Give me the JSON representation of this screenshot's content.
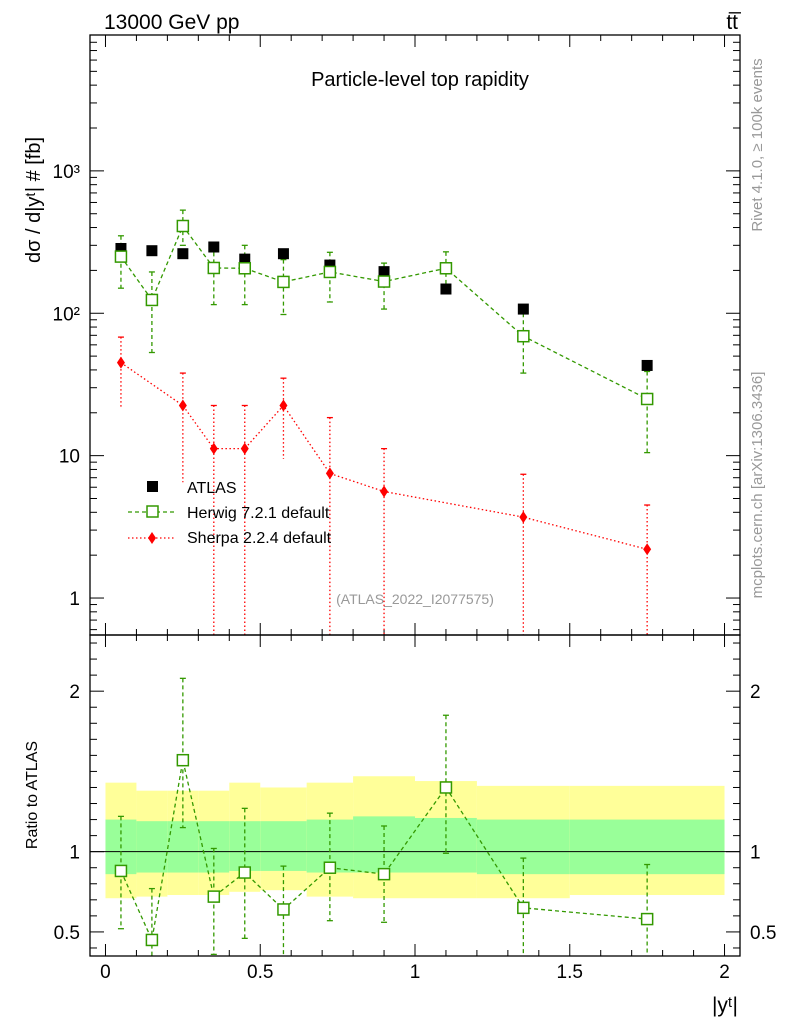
{
  "header": {
    "energy_label": "13000 GeV pp",
    "process_label": "tt̅",
    "rivet_label": "Rivet 4.1.0, ≥ 100k events",
    "source_label": "mcplots.cern.ch [arXiv:1306.3436]",
    "analysis_label": "(ATLAS_2022_I2077575)"
  },
  "chart_data": {
    "type": "scatter",
    "title": "Particle-level top rapidity",
    "xlabel": "|yᵗ|",
    "ylabel": "dσ / d|yᵗ| # [fb]",
    "ratio_ylabel": "Ratio to ATLAS",
    "xlim": [
      -0.05,
      2.05
    ],
    "ylim": [
      0.55,
      9000
    ],
    "ratio_ylim": [
      0.35,
      2.35
    ],
    "yscale": "log",
    "x_ticks": [
      0,
      0.5,
      1,
      1.5,
      2
    ],
    "x_tick_labels": [
      "0",
      "0.5",
      "1",
      "1.5",
      "2"
    ],
    "y_ticks": [
      1,
      10,
      100,
      1000
    ],
    "y_tick_labels": [
      "1",
      "10",
      "10²",
      "10³"
    ],
    "ratio_ticks": [
      0.5,
      1,
      2
    ],
    "ratio_tick_labels": [
      "0.5",
      "1",
      "2"
    ],
    "bin_edges": [
      0,
      0.1,
      0.2,
      0.3,
      0.4,
      0.5,
      0.65,
      0.8,
      1.0,
      1.2,
      1.5,
      2.0
    ],
    "legend_position": "lower-left",
    "series": [
      {
        "name": "ATLAS",
        "color": "#000000",
        "marker": "square-filled",
        "x": [
          0.05,
          0.15,
          0.25,
          0.35,
          0.45,
          0.575,
          0.725,
          0.9,
          1.1,
          1.35,
          1.75
        ],
        "values": [
          285,
          275,
          262,
          292,
          240,
          262,
          218,
          196,
          148,
          107,
          43
        ]
      },
      {
        "name": "Herwig 7.2.1 default",
        "color": "#339900",
        "marker": "square-open",
        "x": [
          0.05,
          0.15,
          0.25,
          0.35,
          0.45,
          0.575,
          0.725,
          0.9,
          1.1,
          1.35,
          1.75
        ],
        "values": [
          250,
          124,
          410,
          208,
          207,
          166,
          195,
          167,
          207,
          69,
          25
        ],
        "err_low": [
          150,
          53,
          300,
          115,
          115,
          98,
          120,
          107,
          143,
          38,
          10.5
        ],
        "err_high": [
          350,
          195,
          530,
          300,
          300,
          238,
          268,
          225,
          270,
          100,
          39
        ],
        "ratio": [
          0.88,
          0.45,
          1.57,
          0.72,
          0.87,
          0.64,
          0.9,
          0.86,
          1.4,
          0.65,
          0.58
        ],
        "ratio_low": [
          0.52,
          0.13,
          1.15,
          0.36,
          0.46,
          0.34,
          0.57,
          0.56,
          0.99,
          0.33,
          0.26
        ],
        "ratio_high": [
          1.22,
          0.77,
          2.08,
          1.02,
          1.27,
          0.91,
          1.24,
          1.16,
          1.85,
          0.96,
          0.92
        ]
      },
      {
        "name": "Sherpa 2.2.4 default",
        "color": "#ff0000",
        "marker": "diamond-filled",
        "x": [
          0.05,
          0.25,
          0.35,
          0.45,
          0.575,
          0.725,
          0.9,
          1.35,
          1.75
        ],
        "values": [
          45,
          22.5,
          11.2,
          11.2,
          22.5,
          7.5,
          5.6,
          3.7,
          2.2
        ],
        "err_low": [
          22,
          6.5,
          0.3,
          0.3,
          9.5,
          0.3,
          0.3,
          0.3,
          0.3
        ],
        "err_high": [
          68,
          38,
          22.5,
          22.5,
          35,
          18.5,
          11.2,
          7.4,
          4.5
        ]
      }
    ],
    "uncertainty_bands": {
      "inner_color": "#99ff99",
      "outer_color": "#ffff99",
      "inner_low": [
        0.86,
        0.87,
        0.87,
        0.87,
        0.88,
        0.88,
        0.87,
        0.87,
        0.87,
        0.86,
        0.86
      ],
      "inner_high": [
        1.2,
        1.19,
        1.19,
        1.19,
        1.19,
        1.19,
        1.2,
        1.22,
        1.21,
        1.2,
        1.2
      ],
      "outer_low": [
        0.71,
        0.72,
        0.73,
        0.73,
        0.75,
        0.76,
        0.72,
        0.71,
        0.71,
        0.71,
        0.73
      ],
      "outer_high": [
        1.43,
        1.38,
        1.38,
        1.38,
        1.43,
        1.4,
        1.43,
        1.47,
        1.44,
        1.41,
        1.41
      ]
    }
  }
}
